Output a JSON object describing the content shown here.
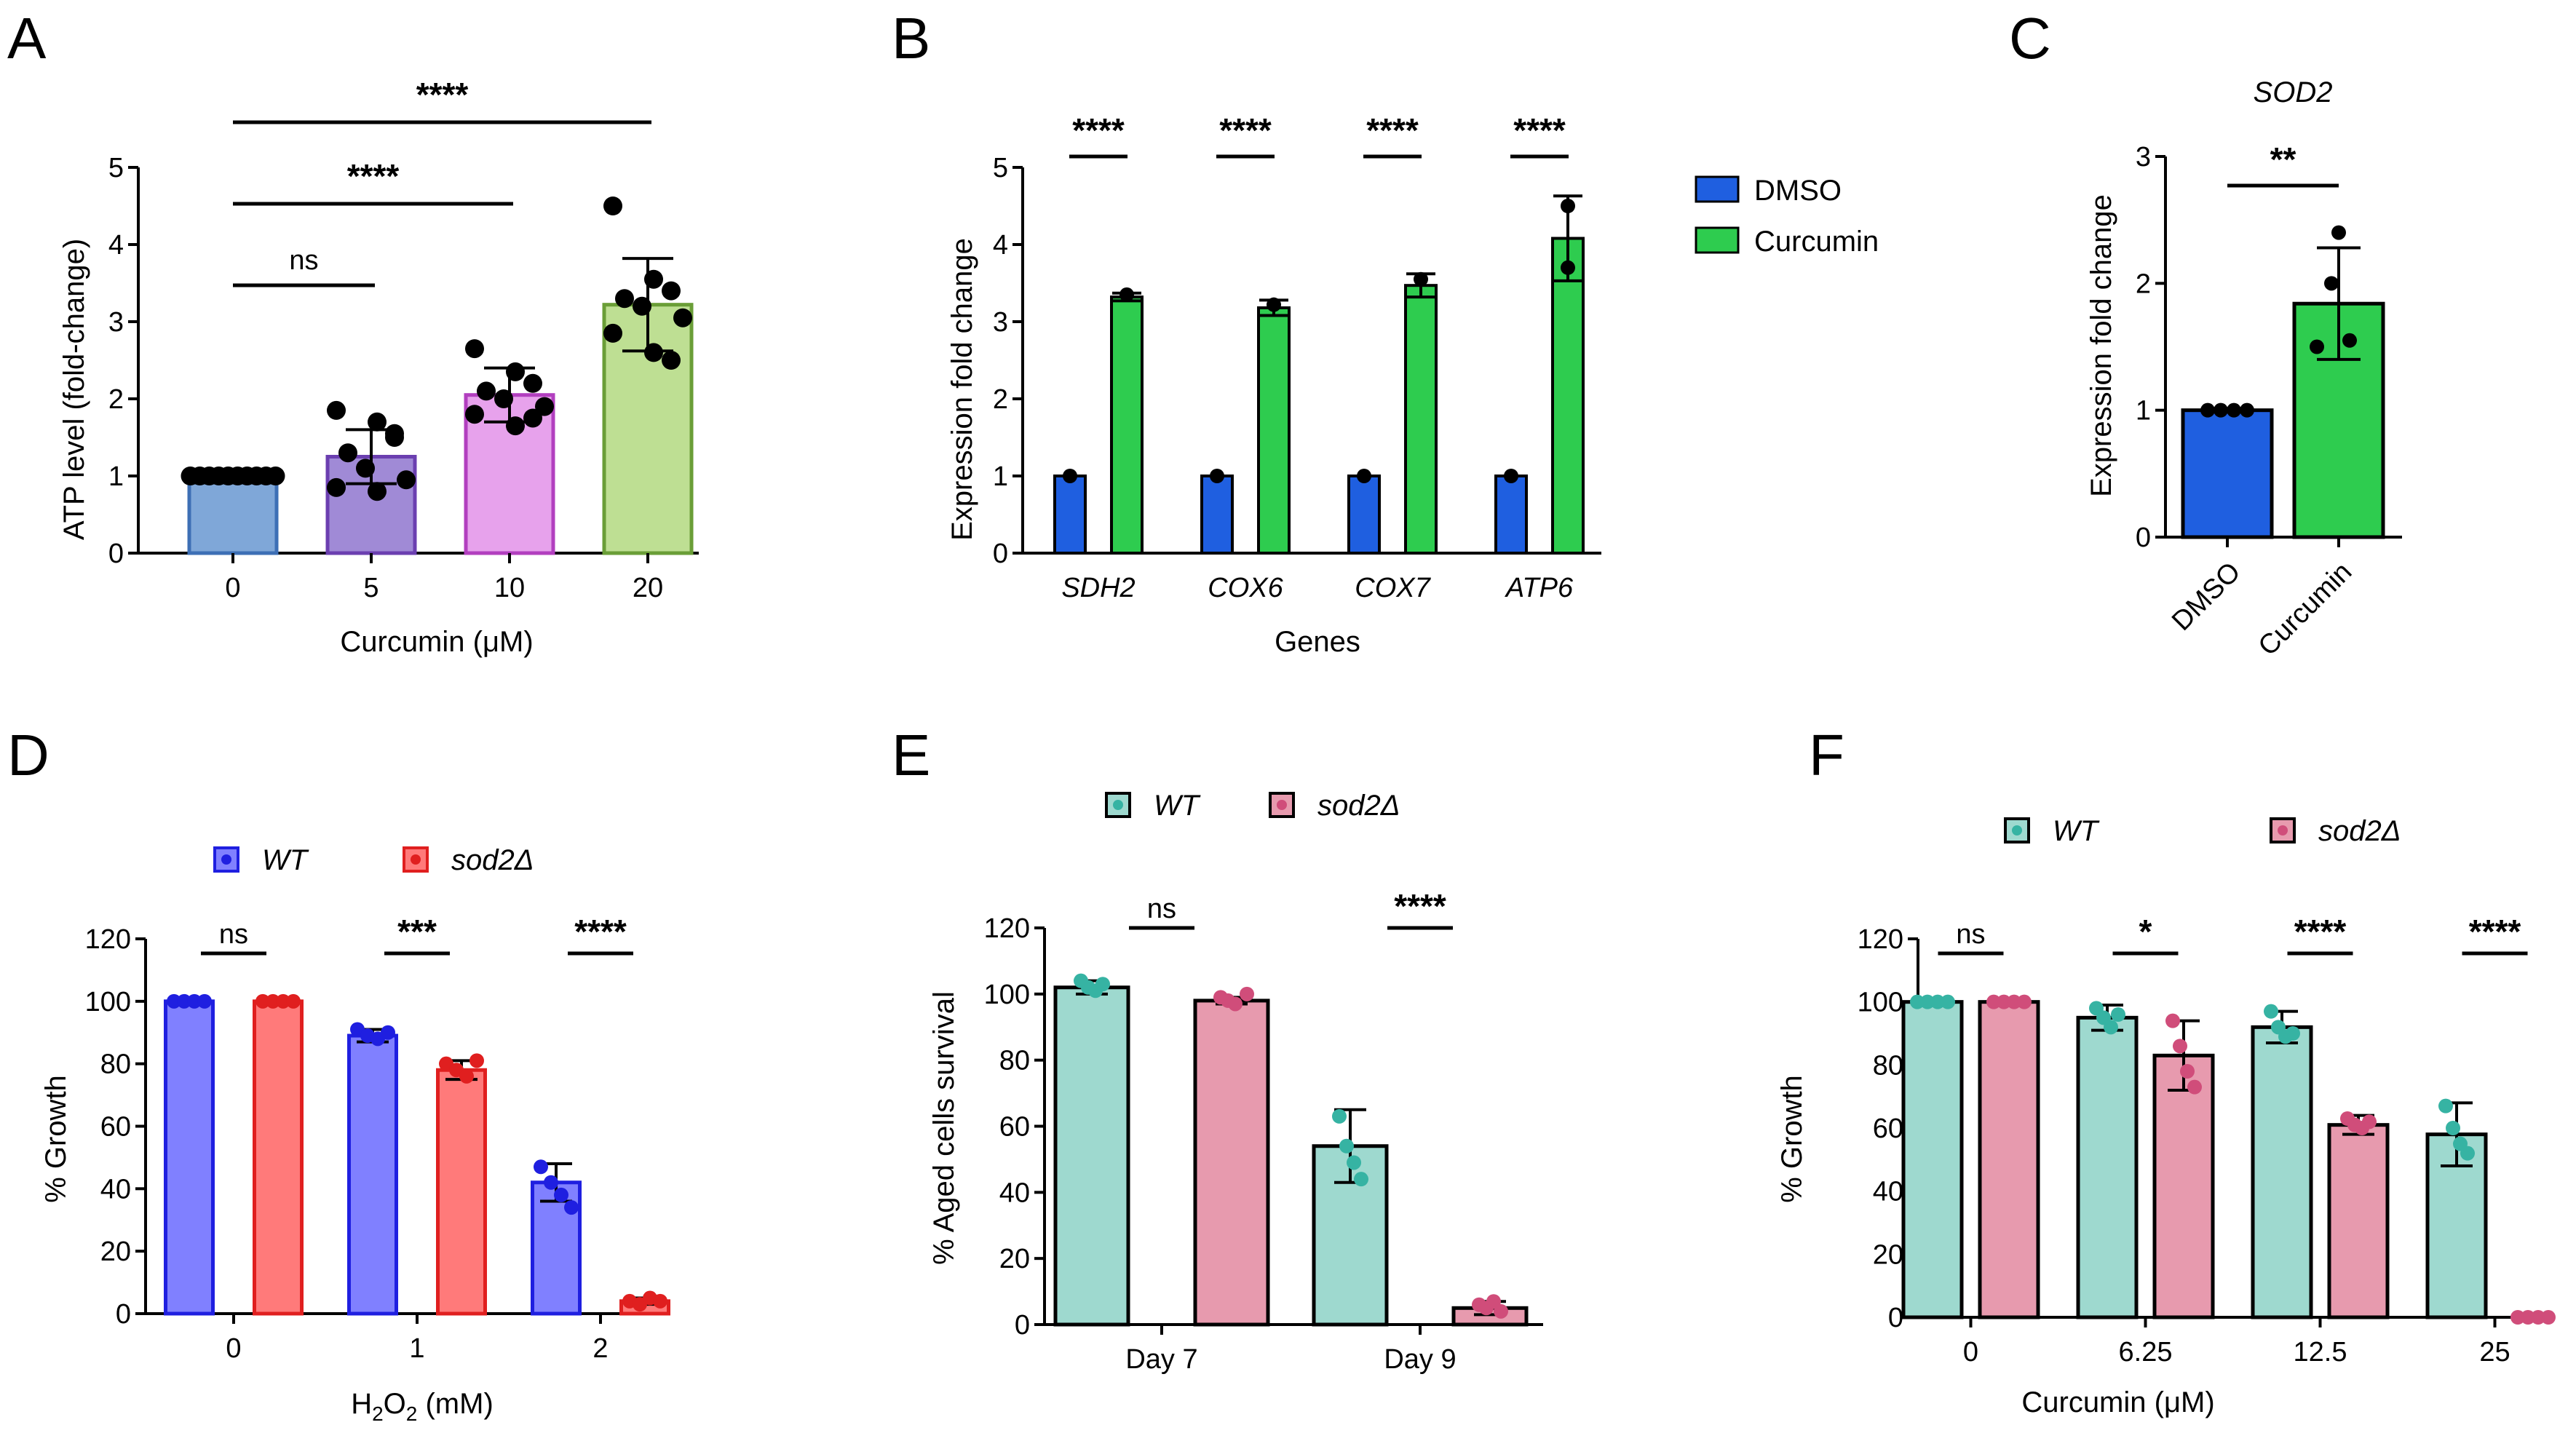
{
  "chart_data": [
    {
      "panel": "A",
      "type": "bar",
      "title": "",
      "xlabel": "Curcumin (μM)",
      "ylabel": "ATP level (fold-change)",
      "ylim": [
        0,
        5
      ],
      "yticks": [
        "0",
        "1",
        "2",
        "3",
        "4",
        "5"
      ],
      "categories": [
        "0",
        "5",
        "10",
        "20"
      ],
      "series": [
        {
          "name": "ATP",
          "colors": [
            "#7fa7d8",
            "#a08ad6",
            "#e7a2ec",
            "#bedf93"
          ],
          "edge_colors": [
            "#3d6fb5",
            "#6b3fb0",
            "#b23fbf",
            "#6a9e37"
          ],
          "values": [
            1.0,
            1.25,
            2.05,
            3.22
          ],
          "errors": [
            0.0,
            0.35,
            0.35,
            0.6
          ],
          "points": [
            [
              1,
              1,
              1,
              1,
              1,
              1,
              1,
              1,
              1,
              1
            ],
            [
              1.85,
              1.7,
              1.5,
              1.3,
              1.1,
              0.95,
              0.85,
              0.8,
              1.55
            ],
            [
              2.65,
              2.35,
              2.2,
              2.1,
              2.0,
              1.9,
              1.8,
              1.65,
              1.75
            ],
            [
              4.5,
              3.55,
              3.4,
              3.3,
              3.2,
              3.05,
              2.85,
              2.6,
              2.5
            ]
          ]
        }
      ],
      "comparisons": [
        {
          "from": 0,
          "to": 1,
          "label": "ns"
        },
        {
          "from": 0,
          "to": 2,
          "label": "****"
        },
        {
          "from": 0,
          "to": 3,
          "label": "****"
        }
      ]
    },
    {
      "panel": "B",
      "type": "bar",
      "title": "",
      "xlabel": "Genes",
      "ylabel": "Expression fold change",
      "ylim": [
        0,
        5
      ],
      "yticks": [
        "0",
        "1",
        "2",
        "3",
        "4",
        "5"
      ],
      "categories": [
        "SDH2",
        "COX6",
        "COX7",
        "ATP6"
      ],
      "series": [
        {
          "name": "DMSO",
          "color": "#1f5fe0",
          "values": [
            1,
            1,
            1,
            1
          ],
          "errors": [
            0,
            0,
            0,
            0
          ],
          "points": [
            [
              1
            ],
            [
              1
            ],
            [
              1
            ],
            [
              1
            ]
          ]
        },
        {
          "name": "Curcumin",
          "color": "#2ecc4f",
          "values": [
            3.32,
            3.18,
            3.47,
            4.08
          ],
          "errors": [
            0.05,
            0.1,
            0.15,
            0.55
          ],
          "points": [
            [
              3.35
            ],
            [
              3.22
            ],
            [
              3.55
            ],
            [
              3.7,
              4.5
            ]
          ]
        }
      ],
      "comparisons": [
        {
          "cat": 0,
          "label": "****"
        },
        {
          "cat": 1,
          "label": "****"
        },
        {
          "cat": 2,
          "label": "****"
        },
        {
          "cat": 3,
          "label": "****"
        }
      ]
    },
    {
      "panel": "C",
      "type": "bar",
      "title": "SOD2",
      "xlabel": "",
      "ylabel": "Expression fold change",
      "ylim": [
        0,
        3
      ],
      "yticks": [
        "0",
        "1",
        "2",
        "3"
      ],
      "categories": [
        "DMSO",
        "Curcumin"
      ],
      "series": [
        {
          "name": "SOD2",
          "colors": [
            "#1f5fe0",
            "#2ecc4f"
          ],
          "values": [
            1.0,
            1.84
          ],
          "errors": [
            0,
            0.44
          ],
          "points": [
            [
              1,
              1,
              1,
              1
            ],
            [
              2.4,
              2.0,
              1.55,
              1.5
            ]
          ]
        }
      ],
      "comparisons": [
        {
          "from": 0,
          "to": 1,
          "label": "**"
        }
      ]
    },
    {
      "panel": "D",
      "type": "bar",
      "title": "",
      "xlabel": "H2O2 (mM)",
      "ylabel": "% Growth",
      "ylim": [
        0,
        120
      ],
      "yticks": [
        "0",
        "20",
        "40",
        "60",
        "80",
        "100",
        "120"
      ],
      "categories": [
        "0",
        "1",
        "2"
      ],
      "series": [
        {
          "name": "WT",
          "color": "#8080ff",
          "edge": "#1f1fe0",
          "values": [
            100,
            89,
            42
          ],
          "errors": [
            0,
            2,
            6
          ],
          "points": [
            [
              100,
              100,
              100,
              100
            ],
            [
              91,
              89,
              88,
              90
            ],
            [
              47,
              42,
              38,
              34
            ]
          ]
        },
        {
          "name": "sod2Δ",
          "color": "#ff7a7a",
          "edge": "#e01f1f",
          "values": [
            100,
            78,
            4
          ],
          "errors": [
            0,
            3,
            1
          ],
          "points": [
            [
              100,
              100,
              100,
              100
            ],
            [
              80,
              78,
              76,
              81
            ],
            [
              4,
              3,
              5,
              4
            ]
          ]
        }
      ],
      "comparisons": [
        {
          "cat": 0,
          "label": "ns"
        },
        {
          "cat": 1,
          "label": "***"
        },
        {
          "cat": 2,
          "label": "****"
        }
      ]
    },
    {
      "panel": "E",
      "type": "bar",
      "title": "",
      "xlabel": "",
      "ylabel": "% Aged cells survival",
      "ylim": [
        0,
        120
      ],
      "yticks": [
        "0",
        "20",
        "40",
        "60",
        "80",
        "100",
        "120"
      ],
      "categories": [
        "Day 7",
        "Day 9"
      ],
      "series": [
        {
          "name": "WT",
          "color": "#9ed9cf",
          "edge": "#000000",
          "marker": "#36b3a3",
          "values": [
            102,
            54
          ],
          "errors": [
            2,
            11
          ],
          "points": [
            [
              104,
              102,
              101,
              103
            ],
            [
              63,
              54,
              49,
              44
            ]
          ]
        },
        {
          "name": "sod2Δ",
          "color": "#e79aae",
          "edge": "#000000",
          "marker": "#d04d7a",
          "values": [
            98,
            5
          ],
          "errors": [
            1,
            2
          ],
          "points": [
            [
              99,
              98,
              97,
              100
            ],
            [
              6,
              5,
              7,
              4
            ]
          ]
        }
      ],
      "comparisons": [
        {
          "cat": 0,
          "label": "ns"
        },
        {
          "cat": 1,
          "label": "****"
        }
      ]
    },
    {
      "panel": "F",
      "type": "bar",
      "title": "",
      "xlabel": "Curcumin (μM)",
      "ylabel": "% Growth",
      "ylim": [
        0,
        120
      ],
      "yticks": [
        "0",
        "20",
        "40",
        "60",
        "80",
        "100",
        "120"
      ],
      "categories": [
        "0",
        "6.25",
        "12.5",
        "25"
      ],
      "series": [
        {
          "name": "WT",
          "color": "#9ed9cf",
          "edge": "#000000",
          "marker": "#36b3a3",
          "values": [
            100,
            95,
            92,
            58
          ],
          "errors": [
            0,
            4,
            5,
            10
          ],
          "points": [
            [
              100,
              100,
              100,
              100
            ],
            [
              98,
              95,
              92,
              96
            ],
            [
              97,
              92,
              89,
              90
            ],
            [
              67,
              60,
              55,
              52
            ]
          ]
        },
        {
          "name": "sod2Δ",
          "color": "#e79aae",
          "edge": "#000000",
          "marker": "#d04d7a",
          "values": [
            100,
            83,
            61,
            0
          ],
          "errors": [
            0,
            11,
            3,
            0
          ],
          "points": [
            [
              100,
              100,
              100,
              100
            ],
            [
              94,
              86,
              78,
              73
            ],
            [
              63,
              61,
              60,
              62
            ],
            [
              0,
              0,
              0,
              0
            ]
          ]
        }
      ],
      "comparisons": [
        {
          "cat": 0,
          "label": "ns"
        },
        {
          "cat": 1,
          "label": "*"
        },
        {
          "cat": 2,
          "label": "****"
        },
        {
          "cat": 3,
          "label": "****"
        }
      ]
    }
  ]
}
